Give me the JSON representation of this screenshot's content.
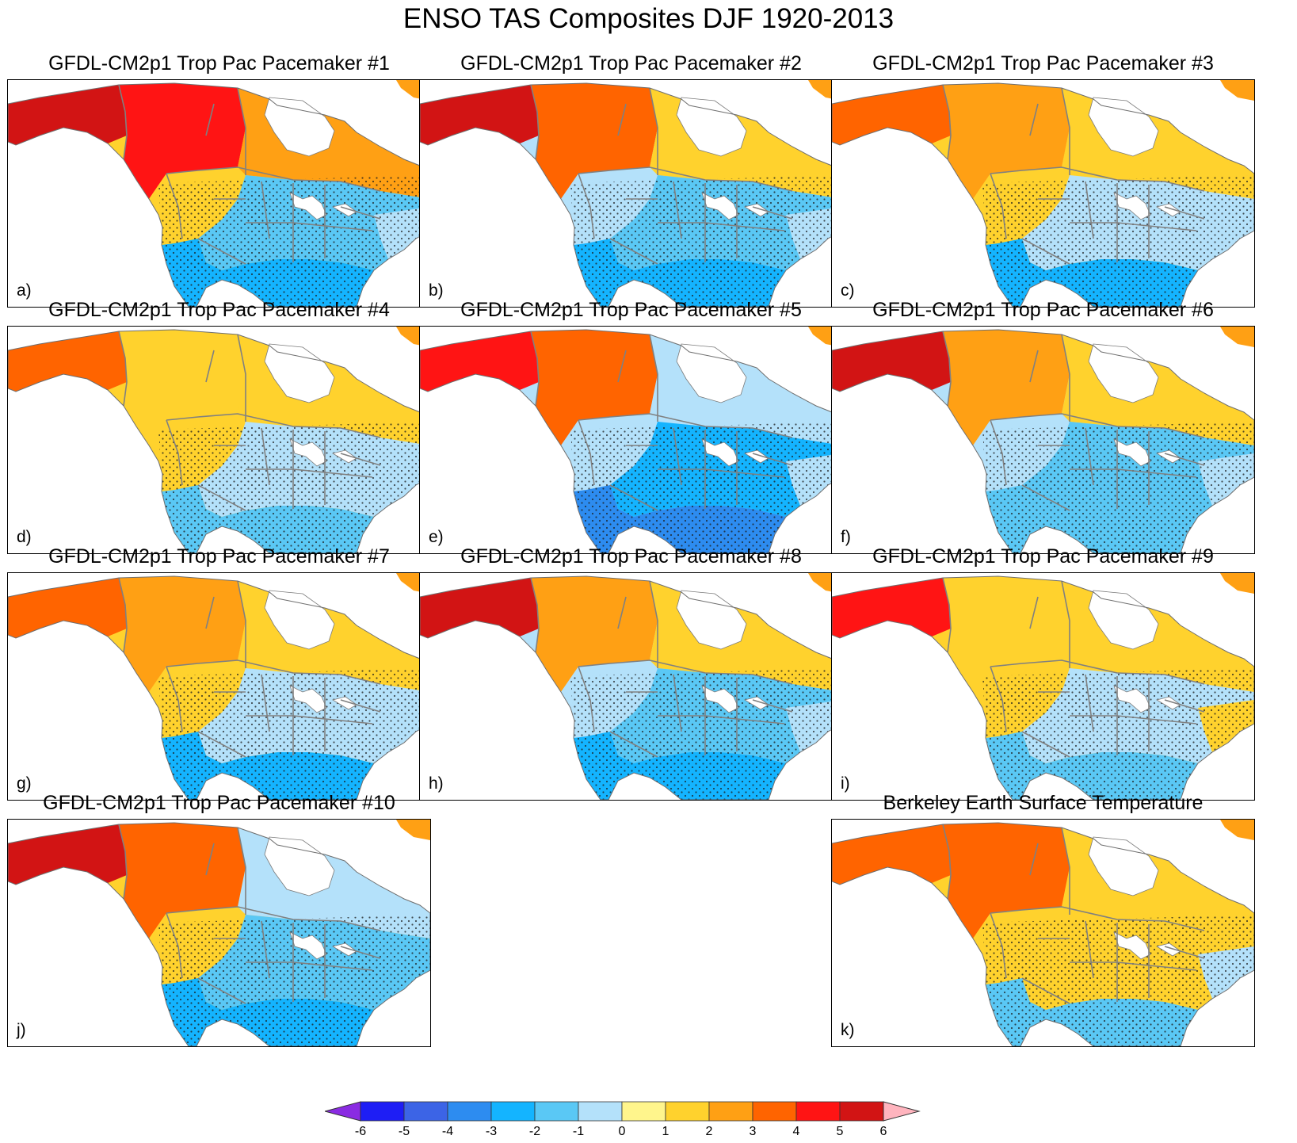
{
  "figure": {
    "title": "ENSO TAS Composites DJF 1920-2013"
  },
  "panels": [
    {
      "title": "GFDL-CM2p1 Trop Pac Pacemaker #1",
      "label": "a)",
      "alaska": 5,
      "canada_w": 4,
      "canada_e": 2,
      "greatplains": 1,
      "us_central": -2,
      "us_south": -3,
      "east": -1
    },
    {
      "title": "GFDL-CM2p1 Trop Pac Pacemaker #2",
      "label": "b)",
      "alaska": 5,
      "canada_w": 3,
      "canada_e": 1,
      "greatplains": -1,
      "us_central": -2,
      "us_south": -3,
      "east": -1
    },
    {
      "title": "GFDL-CM2p1 Trop Pac Pacemaker #3",
      "label": "c)",
      "alaska": 3,
      "canada_w": 2,
      "canada_e": 1,
      "greatplains": 1,
      "us_central": -1,
      "us_south": -3,
      "east": -1
    },
    {
      "title": "GFDL-CM2p1 Trop Pac Pacemaker #4",
      "label": "d)",
      "alaska": 3,
      "canada_w": 1,
      "canada_e": 1,
      "greatplains": 1,
      "us_central": -1,
      "us_south": -2,
      "east": -1
    },
    {
      "title": "GFDL-CM2p1 Trop Pac Pacemaker #5",
      "label": "e)",
      "alaska": 4,
      "canada_w": 3,
      "canada_e": -1,
      "greatplains": -1,
      "us_central": -3,
      "us_south": -4,
      "east": -1
    },
    {
      "title": "GFDL-CM2p1 Trop Pac Pacemaker #6",
      "label": "f)",
      "alaska": 5,
      "canada_w": 2,
      "canada_e": 1,
      "greatplains": -1,
      "us_central": -2,
      "us_south": -2,
      "east": -1
    },
    {
      "title": "GFDL-CM2p1 Trop Pac Pacemaker #7",
      "label": "g)",
      "alaska": 3,
      "canada_w": 2,
      "canada_e": 1,
      "greatplains": 1,
      "us_central": -1,
      "us_south": -3,
      "east": -1
    },
    {
      "title": "GFDL-CM2p1 Trop Pac Pacemaker #8",
      "label": "h)",
      "alaska": 5,
      "canada_w": 2,
      "canada_e": 1,
      "greatplains": -1,
      "us_central": -2,
      "us_south": -3,
      "east": -1
    },
    {
      "title": "GFDL-CM2p1 Trop Pac Pacemaker #9",
      "label": "i)",
      "alaska": 4,
      "canada_w": 1,
      "canada_e": 1,
      "greatplains": 1,
      "us_central": -1,
      "us_south": -2,
      "east": 1
    },
    {
      "title": "GFDL-CM2p1 Trop Pac Pacemaker #10",
      "label": "j)",
      "alaska": 5,
      "canada_w": 3,
      "canada_e": -1,
      "greatplains": 1,
      "us_central": -2,
      "us_south": -3,
      "east": -2
    },
    {
      "title": "Berkeley Earth Surface Temperature",
      "label": "k)",
      "alaska": 3,
      "canada_w": 3,
      "canada_e": 1,
      "greatplains": 1,
      "us_central": 1,
      "us_south": -2,
      "east": -1
    }
  ],
  "colorbar": {
    "levels": [
      "-6",
      "-5",
      "-4",
      "-3",
      "-2",
      "-1",
      "0",
      "1",
      "2",
      "3",
      "4",
      "5",
      "6"
    ],
    "colors": [
      "#8a2be2",
      "#1e1ef5",
      "#3c64e6",
      "#2d8cf0",
      "#14b4ff",
      "#5ac8f5",
      "#b4e1fa",
      "#fff58c",
      "#ffd22d",
      "#ffa014",
      "#ff6400",
      "#ff1414",
      "#d21414",
      "#ffb4be"
    ]
  },
  "colors": {
    "stipple": "#1a1a1a",
    "borders": "#808080",
    "ocean": "#ffffff"
  }
}
